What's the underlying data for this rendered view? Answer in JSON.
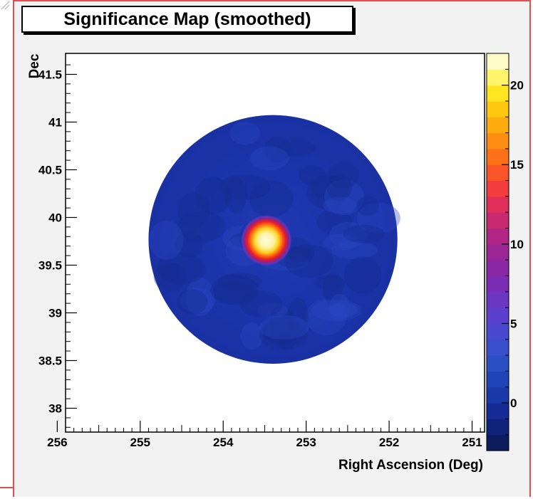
{
  "chart_data": {
    "type": "heatmap",
    "title": "Significance Map (smoothed)",
    "xlabel": "Right Ascension (Deg)",
    "ylabel": "Dec",
    "xlim": [
      255.9,
      250.85
    ],
    "ylim": [
      37.75,
      41.72
    ],
    "x_ticks": [
      "256",
      "255",
      "254",
      "253",
      "252",
      "251"
    ],
    "x_tick_values": [
      256,
      255,
      254,
      253,
      252,
      251
    ],
    "y_ticks": [
      "38",
      "38.5",
      "39",
      "39.5",
      "40",
      "40.5",
      "41",
      "41.5"
    ],
    "y_tick_values": [
      38,
      38.5,
      39,
      39.5,
      40,
      40.5,
      41,
      41.5
    ],
    "region": {
      "shape": "circle",
      "center_ra": 253.4,
      "center_dec": 39.77,
      "radius_deg": 1.5
    },
    "background_significance": 0,
    "sources": [
      {
        "ra": 253.48,
        "dec": 39.76,
        "peak_significance": 21
      }
    ],
    "colorbar": {
      "range": [
        -3,
        22
      ],
      "ticks": [
        "0",
        "5",
        "10",
        "15",
        "20"
      ],
      "tick_values": [
        0,
        5,
        10,
        15,
        20
      ],
      "colors": [
        "#0d1a5c",
        "#10237a",
        "#142c94",
        "#1a38a8",
        "#1f44b8",
        "#2a4fc2",
        "#3a4fcb",
        "#4a48cf",
        "#5a40cc",
        "#6a36c2",
        "#7a2db4",
        "#8a27a4",
        "#9a2594",
        "#b02684",
        "#c82a70",
        "#e0305a",
        "#f23c40",
        "#fa5528",
        "#fc7018",
        "#fd8d12",
        "#feab10",
        "#ffc810",
        "#ffe620",
        "#fff46a",
        "#fffbc8"
      ]
    }
  }
}
